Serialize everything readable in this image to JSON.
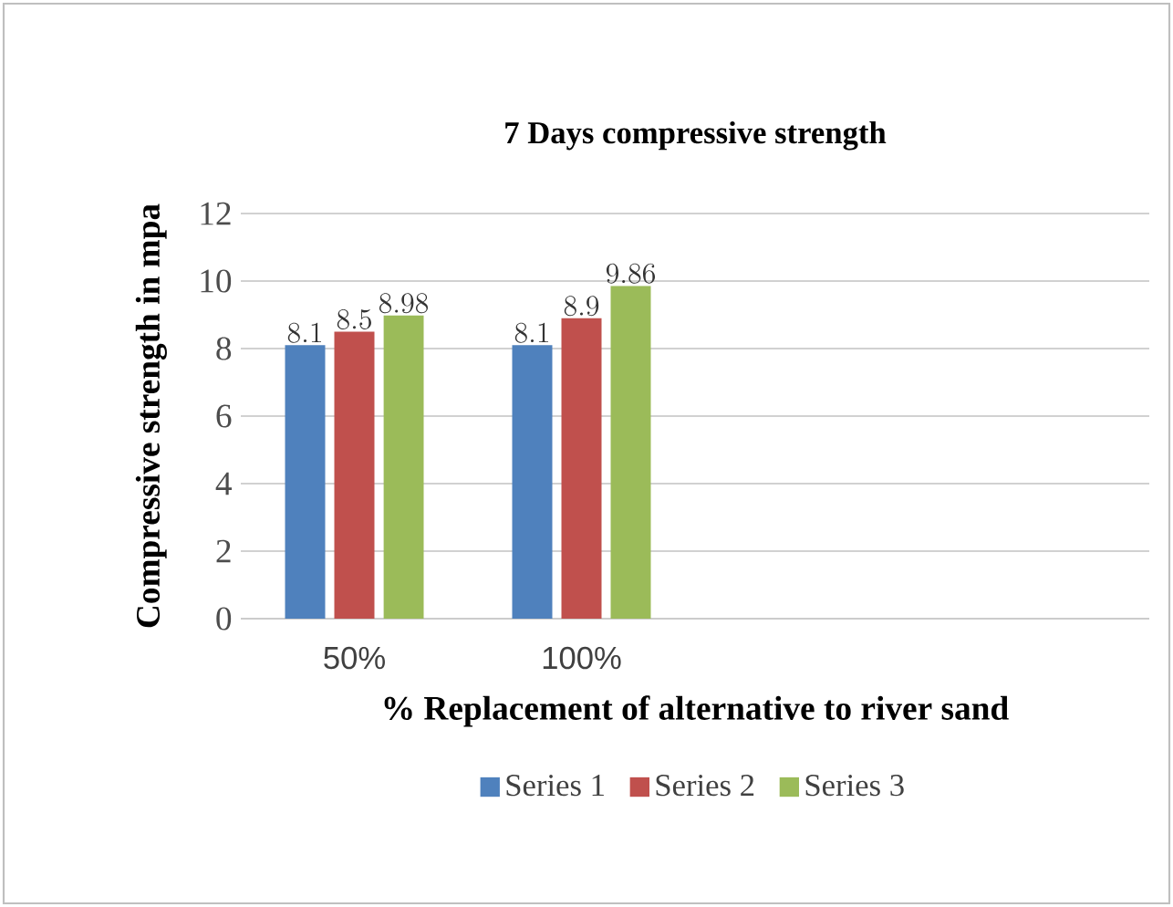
{
  "chart_data": {
    "type": "bar",
    "title": "7 Days  compressive strength",
    "xlabel": "% Replacement of alternative to river sand",
    "ylabel": "Compressive strength in mpa",
    "categories": [
      "50%",
      "100%",
      null,
      null
    ],
    "series": [
      {
        "name": "Series 1",
        "color": "#4f81bd",
        "values": [
          8.1,
          8.1,
          null,
          null
        ]
      },
      {
        "name": "Series 2",
        "color": "#c0504d",
        "values": [
          8.5,
          8.9,
          null,
          null
        ]
      },
      {
        "name": "Series 3",
        "color": "#9bbb59",
        "values": [
          8.98,
          9.86,
          null,
          null
        ]
      }
    ],
    "ylim": [
      0,
      12
    ],
    "yticks": [
      0,
      2,
      4,
      6,
      8,
      10,
      12
    ],
    "grid": "y",
    "legend": "bottom",
    "data_labels": true
  }
}
